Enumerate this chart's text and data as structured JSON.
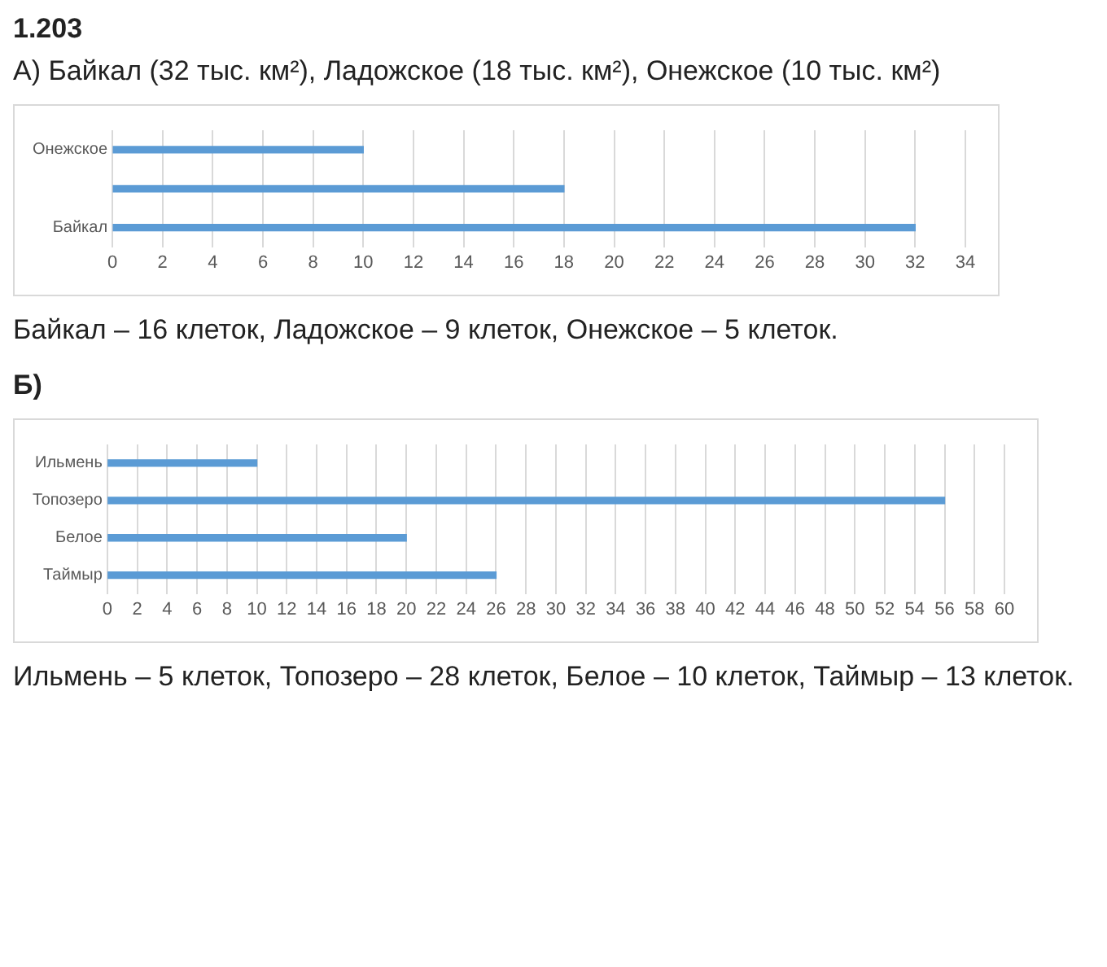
{
  "chart_data": [
    {
      "type": "bar",
      "orientation": "horizontal",
      "title": "1.203",
      "subtitle": "А) Байкал (32 тыс. км²), Ладожское (18 тыс. км²), Онежское (10 тыс. км²)",
      "categories": [
        "Онежское",
        null,
        "Байкал"
      ],
      "values": [
        10,
        18,
        32
      ],
      "color": "#5b9bd5",
      "xlim": [
        0,
        34
      ],
      "xticks": [
        0,
        2,
        4,
        6,
        8,
        10,
        12,
        14,
        16,
        18,
        20,
        22,
        24,
        26,
        28,
        30,
        32,
        34
      ],
      "grid": "x",
      "annotations": [
        "Байкал – 16 клеток, Ладожское – 9 клеток, Онежское – 5 клеток."
      ]
    },
    {
      "type": "bar",
      "orientation": "horizontal",
      "title": "Б)",
      "categories": [
        "Ильмень",
        "Топозеро",
        "Белое",
        "Таймыр"
      ],
      "values": [
        10,
        56,
        20,
        26
      ],
      "color": "#5b9bd5",
      "xlim": [
        0,
        60
      ],
      "xticks": [
        0,
        2,
        4,
        6,
        8,
        10,
        12,
        14,
        16,
        18,
        20,
        22,
        24,
        26,
        28,
        30,
        32,
        34,
        36,
        38,
        40,
        42,
        44,
        46,
        48,
        50,
        52,
        54,
        56,
        58,
        60
      ],
      "grid": "x",
      "annotations": [
        "Ильмень – 5 клеток, Топозеро – 28 клеток, Белое – 10 клеток, Таймыр – 13 клеток."
      ]
    }
  ]
}
